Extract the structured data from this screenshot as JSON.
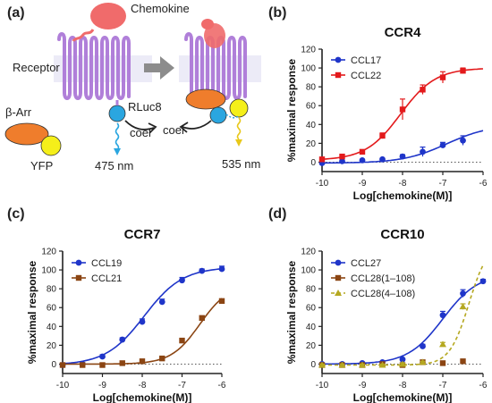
{
  "panel_labels": [
    "(a)",
    "(b)",
    "(c)",
    "(d)"
  ],
  "diagram": {
    "chemokine": "Chemokine",
    "receptor": "Receptor",
    "beta_arr": "β-Arr",
    "yfp": "YFP",
    "rluc": "RLuc8",
    "coel_left": "coel",
    "coel_right": "coel",
    "wl_left": "475 nm",
    "wl_right": "535 nm",
    "colors": {
      "chemokine": "#f06b6b",
      "receptor": "#b07fd9",
      "band": "#ecebf7",
      "arrestin": "#ef7d2c",
      "yfp": "#f5ef1a",
      "rluc": "#2aa6e0",
      "arrow": "#8c8c8c"
    }
  },
  "chart_data": [
    {
      "type": "line",
      "panel": "(b)",
      "title": "CCR4",
      "xlabel": "Log[chemokine(M)]",
      "ylabel": "%maximal response",
      "xlim": [
        -10,
        -6
      ],
      "ylim": [
        -10,
        120
      ],
      "xticks": [
        -10,
        -9,
        -8,
        -7,
        -6
      ],
      "yticks": [
        0,
        20,
        40,
        60,
        80,
        100,
        120
      ],
      "dotted_zero_line": true,
      "legend_position": "top-left",
      "series": [
        {
          "name": "CCL17",
          "color": "#1f35c9",
          "marker": "circle",
          "x": [
            -10,
            -9.5,
            -9,
            -8.5,
            -8,
            -7.5,
            -7,
            -6.5
          ],
          "y": [
            -1,
            1,
            2,
            3,
            6,
            11,
            18,
            23
          ],
          "err": [
            1,
            1,
            1,
            1,
            2,
            5,
            3,
            5
          ],
          "fit": {
            "bottom": -1,
            "top": 40,
            "logec50": -6.9,
            "hill": 0.8
          }
        },
        {
          "name": "CCL22",
          "color": "#e31a1c",
          "marker": "square",
          "x": [
            -10,
            -9.5,
            -9,
            -8.5,
            -8,
            -7.5,
            -7,
            -6.5
          ],
          "y": [
            3,
            6,
            11,
            28,
            56,
            77,
            90,
            97
          ],
          "err": [
            2,
            2,
            2,
            3,
            11,
            5,
            6,
            3
          ],
          "fit": {
            "bottom": 2,
            "top": 100,
            "logec50": -8.05,
            "hill": 1.0
          }
        }
      ]
    },
    {
      "type": "line",
      "panel": "(c)",
      "title": "CCR7",
      "xlabel": "Log[chemokine(M)]",
      "ylabel": "%maximal response",
      "xlim": [
        -10,
        -6
      ],
      "ylim": [
        -10,
        120
      ],
      "xticks": [
        -10,
        -9,
        -8,
        -7,
        -6
      ],
      "yticks": [
        0,
        20,
        40,
        60,
        80,
        100,
        120
      ],
      "dotted_zero_line": true,
      "legend_position": "top-left",
      "series": [
        {
          "name": "CCL19",
          "color": "#1f35c9",
          "marker": "circle",
          "x": [
            -10,
            -9.5,
            -9,
            -8.5,
            -8,
            -7.5,
            -7,
            -6.5,
            -6
          ],
          "y": [
            -1,
            0,
            8,
            26,
            45,
            66,
            89,
            99,
            101
          ],
          "err": [
            1,
            1,
            2,
            2,
            3,
            3,
            3,
            2,
            3
          ],
          "fit": {
            "bottom": -1,
            "top": 103,
            "logec50": -7.95,
            "hill": 0.9
          }
        },
        {
          "name": "CCL21",
          "color": "#8b4513",
          "marker": "square",
          "x": [
            -10,
            -9.5,
            -9,
            -8.5,
            -8,
            -7.5,
            -7,
            -6.5,
            -6
          ],
          "y": [
            -1,
            -1,
            -1,
            1,
            3,
            6,
            25,
            49,
            67
          ],
          "err": [
            1,
            1,
            1,
            1,
            1,
            1,
            2,
            2,
            2
          ],
          "fit": {
            "bottom": 0,
            "top": 85,
            "logec50": -6.55,
            "hill": 1.2
          }
        }
      ]
    },
    {
      "type": "line",
      "panel": "(d)",
      "title": "CCR10",
      "xlabel": "Log[chemokine(M)]",
      "ylabel": "%maximal response",
      "xlim": [
        -10,
        -6
      ],
      "ylim": [
        -10,
        120
      ],
      "xticks": [
        -10,
        -9,
        -8,
        -7,
        -6
      ],
      "yticks": [
        0,
        20,
        40,
        60,
        80,
        100,
        120
      ],
      "dotted_zero_line": true,
      "legend_position": "top-left",
      "series": [
        {
          "name": "CCL27",
          "color": "#1f35c9",
          "marker": "circle",
          "x": [
            -10,
            -9.5,
            -9,
            -8.5,
            -8,
            -7.5,
            -7,
            -6.5,
            -6
          ],
          "y": [
            0,
            0,
            1,
            2,
            5,
            19,
            52,
            75,
            88
          ],
          "err": [
            1,
            1,
            1,
            1,
            1,
            2,
            4,
            4,
            2
          ],
          "fit": {
            "bottom": 0,
            "top": 96,
            "logec50": -7.0,
            "hill": 1.0
          }
        },
        {
          "name": "CCL28(1–108)",
          "color": "#8b4513",
          "marker": "square",
          "x": [
            -10,
            -9.5,
            -9,
            -8.5,
            -8,
            -7.5,
            -7,
            -6.5
          ],
          "y": [
            -1,
            -1,
            -1,
            0,
            -1,
            2,
            1,
            3
          ],
          "err": [
            1,
            1,
            1,
            1,
            1,
            1,
            1,
            1
          ],
          "fit": null
        },
        {
          "name": "CCL28(4–108)",
          "color": "#b5a820",
          "marker": "triangle",
          "x": [
            -10,
            -9.5,
            -9,
            -8.5,
            -8,
            -7.5,
            -7,
            -6.5
          ],
          "y": [
            -1,
            -1,
            -1,
            -1,
            0,
            2,
            21,
            61
          ],
          "err": [
            1,
            1,
            1,
            1,
            1,
            1,
            2,
            3
          ],
          "fit": {
            "bottom": -1,
            "top": 130,
            "logec50": -6.35,
            "hill": 1.8,
            "dashed": true
          }
        }
      ]
    }
  ]
}
